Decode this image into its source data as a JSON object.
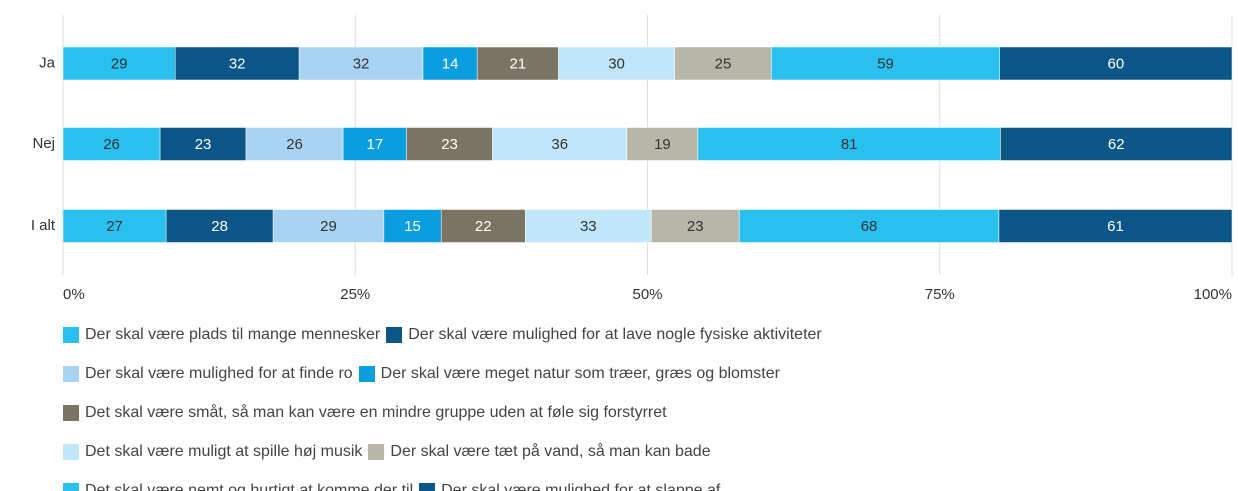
{
  "chart_data": {
    "type": "bar",
    "orientation": "horizontal",
    "stacked": "percent",
    "categories": [
      "Ja",
      "Nej",
      "I alt"
    ],
    "series": [
      {
        "name": "Der skal være plads til mange mennesker",
        "color": "#29c0f0",
        "values": [
          29,
          26,
          27
        ]
      },
      {
        "name": "Der skal være mulighed for at lave nogle fysiske aktiviteter",
        "color": "#0b5587",
        "values": [
          32,
          23,
          28
        ]
      },
      {
        "name": "Der skal være mulighed for at finde ro",
        "color": "#a8d3f2",
        "values": [
          32,
          26,
          29
        ]
      },
      {
        "name": "Der skal være meget natur som træer, græs og blomster",
        "color": "#0a9ee0",
        "values": [
          14,
          17,
          15
        ]
      },
      {
        "name": "Det skal være småt, så man kan være en mindre gruppe uden at føle sig forstyrret",
        "color": "#7a7562",
        "values": [
          21,
          23,
          22
        ]
      },
      {
        "name": "Det skal være muligt at spille høj musik",
        "color": "#c2e6f9",
        "values": [
          30,
          36,
          33
        ]
      },
      {
        "name": "Der skal være tæt på vand, så man kan bade",
        "color": "#b8b6a8",
        "values": [
          25,
          19,
          23
        ]
      },
      {
        "name": "Det skal være nemt og hurtigt at komme der til",
        "color": "#29c0f0",
        "values": [
          59,
          81,
          68
        ]
      },
      {
        "name": "Der skal være mulighed for at slappe af",
        "color": "#0b5587",
        "values": [
          60,
          62,
          61
        ]
      }
    ],
    "xlim": [
      0,
      100
    ],
    "xticks": [
      {
        "value": 0,
        "label": "0%"
      },
      {
        "value": 25,
        "label": "25%"
      },
      {
        "value": 50,
        "label": "50%"
      },
      {
        "value": 75,
        "label": "75%"
      },
      {
        "value": 100,
        "label": "100%"
      }
    ],
    "grid": true
  }
}
